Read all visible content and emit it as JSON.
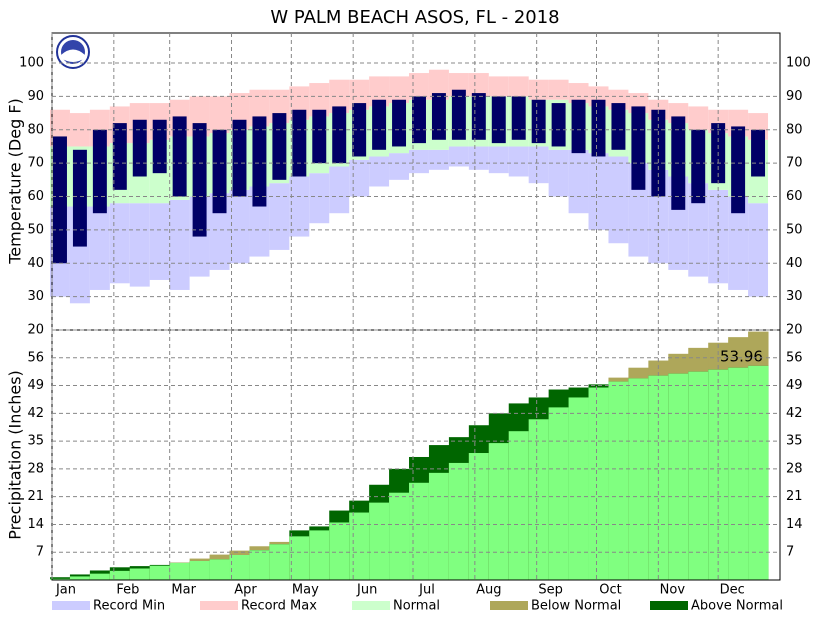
{
  "title": "W PALM BEACH ASOS, FL - 2018",
  "legend": [
    {
      "name": "Record Min",
      "color": "#ccccff"
    },
    {
      "name": "Record Max",
      "color": "#ffcccc"
    },
    {
      "name": "Normal",
      "color": "#ccffcc"
    },
    {
      "name": "Below Normal",
      "color": "#aea75a"
    },
    {
      "name": "Above Normal",
      "color": "#006600"
    }
  ],
  "chart_data": [
    {
      "type": "range_bar",
      "y_label": "Temperature (Deg F)",
      "x": [
        5,
        15,
        25,
        35,
        45,
        55,
        65,
        75,
        85,
        95,
        105,
        115,
        125,
        135,
        145,
        155,
        165,
        175,
        185,
        195,
        205,
        215,
        225,
        235,
        245,
        255,
        265,
        275,
        285,
        295,
        305,
        315,
        325,
        335,
        345,
        355
      ],
      "xlim": [
        1,
        366
      ],
      "ylim": [
        20,
        109
      ],
      "yticks": [
        20,
        30,
        40,
        50,
        60,
        70,
        80,
        90,
        100
      ],
      "grid": true,
      "record_min": {
        "color": "#ccccff",
        "values": [
          30,
          28,
          32,
          34,
          33,
          35,
          32,
          36,
          38,
          40,
          42,
          44,
          48,
          52,
          55,
          60,
          63,
          65,
          67,
          68,
          69,
          68,
          67,
          66,
          64,
          60,
          55,
          50,
          46,
          42,
          40,
          38,
          36,
          34,
          32,
          30
        ]
      },
      "record_max": {
        "color": "#ffcccc",
        "values": [
          86,
          85,
          86,
          87,
          88,
          88,
          89,
          90,
          90,
          91,
          92,
          92,
          93,
          94,
          95,
          95,
          96,
          96,
          97,
          98,
          97,
          97,
          96,
          96,
          95,
          95,
          94,
          93,
          92,
          91,
          89,
          88,
          87,
          86,
          86,
          85
        ]
      },
      "normal": {
        "color": "#ccffcc",
        "lows": [
          57,
          57,
          57,
          58,
          58,
          58,
          59,
          60,
          61,
          62,
          63,
          64,
          66,
          67,
          69,
          71,
          72,
          73,
          74,
          74,
          75,
          75,
          75,
          75,
          75,
          74,
          74,
          73,
          72,
          70,
          68,
          66,
          64,
          62,
          60,
          58
        ],
        "highs": [
          75,
          75,
          75,
          76,
          76,
          77,
          78,
          78,
          79,
          80,
          81,
          82,
          83,
          84,
          85,
          86,
          87,
          88,
          89,
          89,
          90,
          90,
          90,
          90,
          89,
          89,
          88,
          87,
          86,
          85,
          83,
          82,
          80,
          79,
          78,
          77
        ]
      },
      "observed": {
        "color": "#000066",
        "lows": [
          40,
          45,
          55,
          62,
          66,
          67,
          60,
          48,
          55,
          60,
          57,
          65,
          66,
          70,
          70,
          72,
          74,
          75,
          76,
          77,
          77,
          77,
          76,
          77,
          76,
          75,
          73,
          72,
          74,
          62,
          60,
          56,
          58,
          64,
          55,
          66
        ],
        "highs": [
          78,
          74,
          80,
          82,
          83,
          83,
          84,
          82,
          80,
          83,
          84,
          85,
          86,
          86,
          87,
          88,
          89,
          89,
          90,
          91,
          92,
          91,
          90,
          90,
          89,
          88,
          89,
          89,
          88,
          87,
          86,
          84,
          80,
          82,
          81,
          80
        ]
      }
    },
    {
      "type": "cumulative_area",
      "y_label": "Precipitation (Inches)",
      "x": [
        5,
        15,
        25,
        35,
        45,
        55,
        65,
        75,
        85,
        95,
        105,
        115,
        125,
        135,
        145,
        155,
        165,
        175,
        185,
        195,
        205,
        215,
        225,
        235,
        245,
        255,
        265,
        275,
        285,
        295,
        305,
        315,
        325,
        335,
        345,
        355
      ],
      "xlim": [
        1,
        366
      ],
      "ylim": [
        0,
        63
      ],
      "yticks": [
        7,
        14,
        21,
        28,
        35,
        42,
        49,
        56
      ],
      "grid": true,
      "xticks": [
        {
          "value": 1,
          "label": "Jan"
        },
        {
          "value": 32,
          "label": "Feb"
        },
        {
          "value": 60,
          "label": "Mar"
        },
        {
          "value": 91,
          "label": "Apr"
        },
        {
          "value": 121,
          "label": "May"
        },
        {
          "value": 152,
          "label": "Jun"
        },
        {
          "value": 182,
          "label": "Jul"
        },
        {
          "value": 213,
          "label": "Aug"
        },
        {
          "value": 244,
          "label": "Sep"
        },
        {
          "value": 274,
          "label": "Oct"
        },
        {
          "value": 305,
          "label": "Nov"
        },
        {
          "value": 335,
          "label": "Dec"
        }
      ],
      "observed": {
        "color": "#80ff80",
        "values": [
          0.7,
          1.4,
          2.4,
          3.2,
          3.5,
          3.8,
          4.3,
          4.8,
          5.2,
          6.3,
          7.5,
          9.0,
          12.5,
          13.5,
          17.5,
          20,
          24,
          28,
          31,
          34,
          36,
          39,
          42,
          44.5,
          46,
          48,
          48.5,
          49.3,
          50,
          50.8,
          51.5,
          52,
          52.5,
          53,
          53.5,
          53.96
        ]
      },
      "normal": {
        "values": [
          0.3,
          0.9,
          1.6,
          2.3,
          2.9,
          3.6,
          4.4,
          5.4,
          6.4,
          7.4,
          8.5,
          9.6,
          11,
          12.5,
          14.5,
          17,
          19.5,
          22,
          24.5,
          27,
          29.5,
          32,
          34.5,
          37.5,
          40.5,
          43.5,
          46,
          48.5,
          51,
          53.5,
          55.3,
          57,
          58.5,
          59.8,
          61.2,
          62.6
        ]
      },
      "annotation": "53.96"
    }
  ]
}
